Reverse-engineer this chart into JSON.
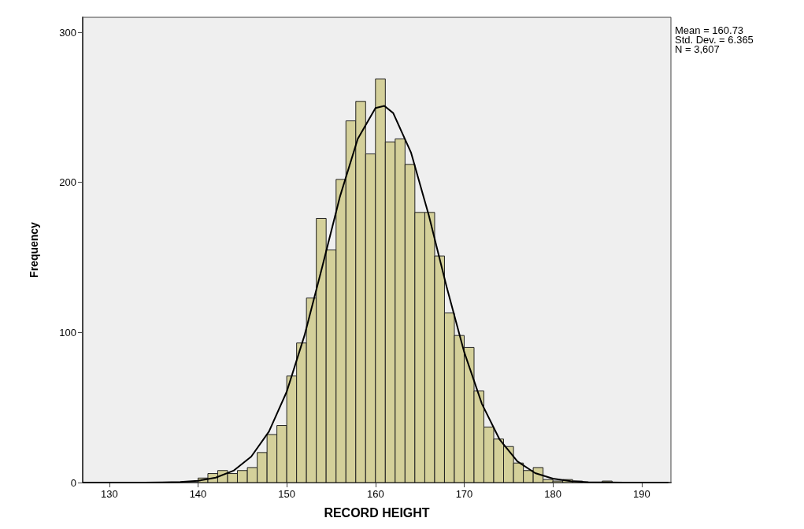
{
  "chart_data": {
    "type": "histogram",
    "xlabel": "RECORD HEIGHT",
    "ylabel": "Frequency",
    "annotations": [
      "Mean = 160.73",
      "Std. Dev. = 6.365",
      "N = 3,607"
    ],
    "bins": [
      140,
      141.11,
      142.22,
      143.33,
      144.44,
      145.56,
      146.67,
      147.78,
      148.89,
      150,
      151.11,
      152.22,
      153.33,
      154.44,
      155.56,
      156.67,
      157.78,
      158.89,
      160,
      161.11,
      162.22,
      163.33,
      164.44,
      165.56,
      166.67,
      167.78,
      168.89,
      170,
      171.11,
      172.22,
      173.33,
      174.44,
      175.56,
      176.67,
      177.78,
      178.89,
      180,
      181.11,
      182.22,
      183.33,
      184.44,
      185.56,
      186.67
    ],
    "series": [
      {
        "color": "#d4d09a",
        "values": [
          3,
          6,
          8,
          6,
          8,
          10,
          20,
          32,
          38,
          71,
          93,
          123,
          176,
          155,
          202,
          241,
          254,
          219,
          269,
          227,
          229,
          212,
          180,
          180,
          151,
          113,
          98,
          90,
          61,
          37,
          29,
          24,
          13,
          8,
          10,
          2,
          1,
          2,
          1,
          0,
          0,
          1
        ]
      },
      {
        "type": "line",
        "color": "#000000",
        "x": [
          127,
          130,
          132,
          134,
          136,
          138,
          140,
          142,
          144,
          146,
          148,
          150,
          152,
          154,
          156,
          158,
          160,
          161,
          162,
          164,
          166,
          168,
          170,
          172,
          174,
          176,
          178,
          180,
          182,
          184,
          186,
          188,
          190,
          193
        ],
        "values": [
          0,
          0,
          0,
          0,
          0.1,
          0.4,
          1.2,
          3.3,
          7.9,
          17.3,
          34,
          60.6,
          98,
          143.7,
          190.6,
          229,
          249.5,
          251,
          246.2,
          220,
          178.3,
          130.9,
          87,
          52.4,
          28.6,
          14.1,
          6.3,
          2.6,
          0.9,
          0.3,
          0.1,
          0,
          0,
          0
        ]
      }
    ],
    "xlim": [
      127,
      193.3
    ],
    "xticks": [
      130,
      140,
      150,
      160,
      170,
      180,
      190
    ],
    "ylim": [
      0,
      310
    ],
    "yticks": [
      0,
      100,
      200,
      300
    ],
    "grid": false,
    "marker": "none",
    "line_style": "solid"
  }
}
